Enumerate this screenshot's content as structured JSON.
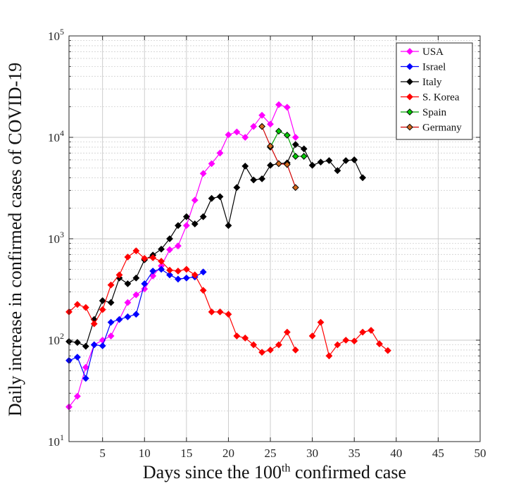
{
  "chart_data": {
    "type": "line",
    "xlabel_prefix": "Days since the 100",
    "xlabel_sup": "th",
    "xlabel_suffix": " confirmed case",
    "ylabel": "Daily increase in confirmed cases of COVID-19",
    "xlim": [
      1,
      50
    ],
    "ylim": [
      10,
      100000
    ],
    "yscale": "log",
    "x_ticks": [
      5,
      10,
      15,
      20,
      25,
      30,
      35,
      40,
      45,
      50
    ],
    "y_ticks": [
      {
        "value": 10,
        "base": "10",
        "exp": "1"
      },
      {
        "value": 100,
        "base": "10",
        "exp": "2"
      },
      {
        "value": 1000,
        "base": "10",
        "exp": "3"
      },
      {
        "value": 10000,
        "base": "10",
        "exp": "4"
      },
      {
        "value": 100000,
        "base": "10",
        "exp": "5"
      }
    ],
    "grid": true,
    "legend_position": "top-right",
    "series": [
      {
        "name": "USA",
        "color": "#ff00ff",
        "marker_fill": "#ff00ff",
        "marker_edge": "#ff00ff",
        "x": [
          1,
          2,
          3,
          4,
          5,
          6,
          7,
          8,
          9,
          10,
          11,
          12,
          13,
          14,
          15,
          16,
          17,
          18,
          19,
          20,
          21,
          22,
          23,
          24,
          25,
          26,
          27,
          28
        ],
        "y": [
          22,
          28,
          54,
          90,
          100,
          110,
          160,
          235,
          280,
          320,
          430,
          540,
          780,
          850,
          1350,
          2400,
          4400,
          5500,
          7000,
          10600,
          11300,
          10000,
          12800,
          16500,
          13500,
          21000,
          19800,
          10000
        ]
      },
      {
        "name": "Israel",
        "color": "#0000ff",
        "marker_fill": "#0000ff",
        "marker_edge": "#0000ff",
        "x": [
          1,
          2,
          3,
          4,
          5,
          6,
          7,
          8,
          9,
          10,
          11,
          12,
          13,
          14,
          15,
          16,
          17
        ],
        "y": [
          63,
          68,
          42,
          90,
          88,
          150,
          160,
          170,
          180,
          360,
          480,
          500,
          440,
          400,
          410,
          420,
          470
        ]
      },
      {
        "name": "Italy",
        "color": "#000000",
        "marker_fill": "#000000",
        "marker_edge": "#000000",
        "x": [
          1,
          2,
          3,
          4,
          5,
          6,
          7,
          8,
          9,
          10,
          11,
          12,
          13,
          14,
          15,
          16,
          17,
          18,
          19,
          20,
          21,
          22,
          23,
          24,
          25,
          26,
          27,
          28,
          29,
          30,
          31,
          32,
          33,
          34,
          35,
          36
        ],
        "y": [
          97,
          95,
          87,
          160,
          245,
          235,
          410,
          360,
          410,
          620,
          690,
          790,
          1000,
          1350,
          1650,
          1400,
          1650,
          2500,
          2600,
          1350,
          3200,
          5200,
          3800,
          3900,
          5300,
          5500,
          5600,
          8500,
          7700,
          5300,
          5700,
          5900,
          4700,
          5900,
          6000,
          4000
        ]
      },
      {
        "name": "S. Korea",
        "color": "#ff0000",
        "marker_fill": "#ff0000",
        "marker_edge": "#ff0000",
        "x": [
          1,
          2,
          3,
          4,
          5,
          6,
          7,
          8,
          9,
          10,
          11,
          12,
          13,
          14,
          15,
          16,
          17,
          18,
          19,
          20,
          21,
          22,
          23,
          24,
          25,
          26,
          27,
          28,
          29,
          30,
          31,
          32,
          33,
          34,
          35,
          36,
          37,
          38,
          39
        ],
        "y": [
          190,
          225,
          210,
          145,
          200,
          350,
          440,
          660,
          760,
          640,
          650,
          600,
          490,
          480,
          500,
          440,
          310,
          190,
          190,
          180,
          110,
          105,
          90,
          76,
          80,
          90,
          120,
          80,
          null,
          110,
          150,
          70,
          90,
          100,
          98,
          120,
          125,
          92,
          79
        ]
      },
      {
        "name": "Spain",
        "color": "#00a000",
        "marker_fill": "#00cc00",
        "marker_edge": "#000000",
        "x": [
          25,
          26,
          27,
          28,
          29
        ],
        "y": [
          8000,
          11500,
          10500,
          6500,
          6500
        ]
      },
      {
        "name": "Germany",
        "color": "#d00000",
        "marker_fill": "#d2691e",
        "marker_edge": "#000000",
        "x": [
          24,
          25,
          26,
          27,
          28
        ],
        "y": [
          12800,
          8200,
          5500,
          5400,
          3200
        ]
      }
    ]
  }
}
